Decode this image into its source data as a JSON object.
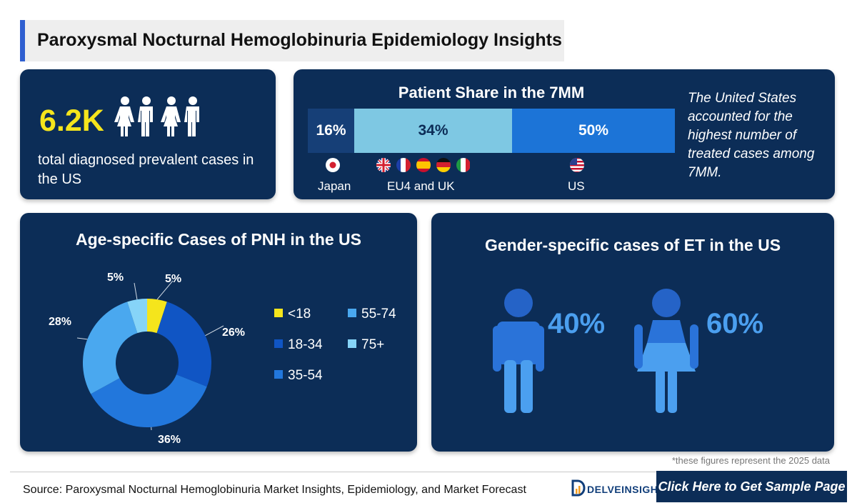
{
  "header": {
    "title": "Paroxysmal Nocturnal Hemoglobinuria Epidemiology Insights"
  },
  "prevalence": {
    "value": "6.2K",
    "description": "total diagnosed prevalent cases in the US",
    "icon": "people-icon"
  },
  "patient_share": {
    "title": "Patient Share in the 7MM",
    "segments": [
      {
        "label": "16%",
        "region": "Japan",
        "value": 16
      },
      {
        "label": "34%",
        "region": "EU4 and UK",
        "value": 34
      },
      {
        "label": "50%",
        "region": "US",
        "value": 50
      }
    ],
    "note": "The United States accounted for the highest number of treated cases among 7MM."
  },
  "age_chart": {
    "title": "Age-specific Cases of PNH in the US"
  },
  "gender_chart": {
    "title": "Gender-specific cases of ET in the US",
    "male_pct": "40%",
    "female_pct": "60%"
  },
  "chart_data": [
    {
      "type": "pie",
      "title": "Age-specific Cases of PNH in the US",
      "categories": [
        "<18",
        "18-34",
        "35-54",
        "55-74",
        "75+"
      ],
      "values": [
        5,
        26,
        36,
        28,
        5
      ],
      "labels": [
        "5%",
        "26%",
        "36%",
        "28%",
        "5%"
      ],
      "colors": [
        "#f5e51c",
        "#1055c4",
        "#2277dc",
        "#4aa8ef",
        "#86d4f8"
      ],
      "legend_position": "right"
    },
    {
      "type": "bar",
      "title": "Gender-specific cases of ET in the US",
      "categories": [
        "Male",
        "Female"
      ],
      "values": [
        40,
        60
      ]
    }
  ],
  "footer": {
    "footnote": "*these figures represent the 2025 data",
    "source": "Source: Paroxysmal Nocturnal Hemoglobinuria Market Insights, Epidemiology, and Market Forecast",
    "brand": "DELVEINSIGHT",
    "cta": "Click Here to Get Sample Page"
  }
}
